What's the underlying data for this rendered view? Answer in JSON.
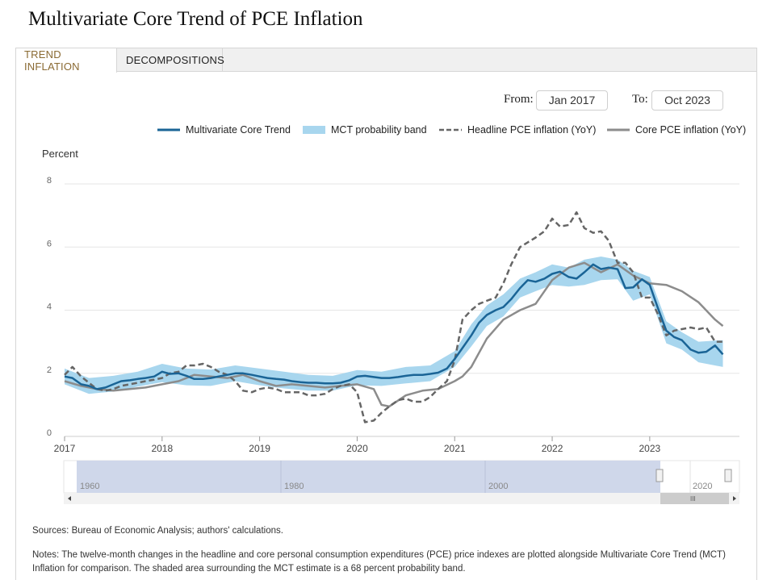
{
  "page": {
    "title": "Multivariate Core Trend of PCE Inflation"
  },
  "tabs": [
    {
      "label": "TREND INFLATION",
      "active": true
    },
    {
      "label": "DECOMPOSITIONS",
      "active": false
    }
  ],
  "range": {
    "from_label": "From:",
    "from_value": "Jan 2017",
    "to_label": "To:",
    "to_value": "Oct 2023"
  },
  "legend": {
    "mct": "Multivariate Core Trend",
    "band": "MCT probability band",
    "headline": "Headline PCE inflation (YoY)",
    "core": "Core PCE inflation (YoY)"
  },
  "colors": {
    "mct": "#1a6496",
    "band": "#a8d6ee",
    "headline": "#666666",
    "core": "#8c8c8c",
    "navigator_fill": "#cfd7ea"
  },
  "chart_data": {
    "type": "line",
    "ylabel": "Percent",
    "ylim": [
      0,
      8
    ],
    "yticks": [
      0,
      2,
      4,
      6,
      8
    ],
    "xlim": [
      2017.0,
      2023.92
    ],
    "xticks": [
      2017,
      2018,
      2019,
      2020,
      2021,
      2022,
      2023
    ],
    "grid": true,
    "series": [
      {
        "name": "Multivariate Core Trend",
        "style": "solid",
        "x": [
          2017.0,
          2017.08,
          2017.17,
          2017.25,
          2017.33,
          2017.42,
          2017.5,
          2017.58,
          2017.67,
          2017.75,
          2017.83,
          2017.92,
          2018.0,
          2018.08,
          2018.17,
          2018.25,
          2018.33,
          2018.42,
          2018.5,
          2018.58,
          2018.67,
          2018.75,
          2018.83,
          2018.92,
          2019.0,
          2019.08,
          2019.17,
          2019.25,
          2019.33,
          2019.42,
          2019.5,
          2019.58,
          2019.67,
          2019.75,
          2019.83,
          2019.92,
          2020.0,
          2020.08,
          2020.17,
          2020.25,
          2020.33,
          2020.42,
          2020.5,
          2020.58,
          2020.67,
          2020.75,
          2020.83,
          2020.92,
          2021.0,
          2021.08,
          2021.17,
          2021.25,
          2021.33,
          2021.42,
          2021.5,
          2021.58,
          2021.67,
          2021.75,
          2021.83,
          2021.92,
          2022.0,
          2022.08,
          2022.17,
          2022.25,
          2022.33,
          2022.42,
          2022.5,
          2022.58,
          2022.67,
          2022.75,
          2022.83,
          2022.92,
          2023.0,
          2023.08,
          2023.17,
          2023.25,
          2023.33,
          2023.42,
          2023.5,
          2023.58,
          2023.67,
          2023.75
        ],
        "y": [
          1.9,
          1.85,
          1.65,
          1.6,
          1.5,
          1.55,
          1.65,
          1.75,
          1.78,
          1.82,
          1.85,
          1.9,
          2.05,
          1.98,
          2.0,
          1.92,
          1.82,
          1.82,
          1.85,
          1.9,
          1.95,
          2.0,
          2.0,
          1.95,
          1.9,
          1.85,
          1.82,
          1.8,
          1.75,
          1.72,
          1.7,
          1.7,
          1.68,
          1.68,
          1.7,
          1.78,
          1.9,
          1.92,
          1.88,
          1.85,
          1.85,
          1.88,
          1.92,
          1.95,
          1.95,
          1.98,
          2.02,
          2.15,
          2.45,
          2.8,
          3.2,
          3.6,
          3.85,
          4.0,
          4.1,
          4.35,
          4.7,
          4.95,
          4.9,
          5.0,
          5.15,
          5.22,
          5.05,
          5.0,
          5.2,
          5.45,
          5.3,
          5.35,
          5.3,
          4.7,
          4.72,
          4.98,
          4.8,
          4.1,
          3.35,
          3.15,
          3.05,
          2.75,
          2.65,
          2.68,
          2.88,
          2.6
        ]
      },
      {
        "name": "MCT probability band",
        "style": "band",
        "x": [
          2017.0,
          2017.25,
          2017.5,
          2017.75,
          2018.0,
          2018.25,
          2018.5,
          2018.75,
          2019.0,
          2019.25,
          2019.5,
          2019.75,
          2020.0,
          2020.25,
          2020.5,
          2020.75,
          2021.0,
          2021.17,
          2021.33,
          2021.5,
          2021.67,
          2021.83,
          2022.0,
          2022.17,
          2022.33,
          2022.5,
          2022.67,
          2022.83,
          2023.0,
          2023.17,
          2023.33,
          2023.5,
          2023.75
        ],
        "upper": [
          2.15,
          1.85,
          1.92,
          2.05,
          2.3,
          2.15,
          2.12,
          2.25,
          2.15,
          2.05,
          1.95,
          1.92,
          2.1,
          2.05,
          2.2,
          2.25,
          2.7,
          3.55,
          4.15,
          4.5,
          5.0,
          5.2,
          5.45,
          5.35,
          5.6,
          5.7,
          5.6,
          5.25,
          5.05,
          3.65,
          3.3,
          3.0,
          3.05
        ],
        "lower": [
          1.65,
          1.35,
          1.42,
          1.58,
          1.72,
          1.62,
          1.6,
          1.75,
          1.62,
          1.52,
          1.45,
          1.45,
          1.62,
          1.6,
          1.68,
          1.75,
          2.2,
          2.85,
          3.5,
          3.8,
          4.4,
          4.6,
          4.8,
          4.75,
          4.8,
          4.95,
          4.98,
          4.3,
          4.5,
          2.95,
          2.75,
          2.35,
          2.2
        ]
      },
      {
        "name": "Headline PCE inflation (YoY)",
        "style": "dashed",
        "x": [
          2017.0,
          2017.08,
          2017.17,
          2017.25,
          2017.33,
          2017.42,
          2017.5,
          2017.58,
          2017.67,
          2017.75,
          2017.83,
          2017.92,
          2018.0,
          2018.08,
          2018.17,
          2018.25,
          2018.33,
          2018.42,
          2018.5,
          2018.58,
          2018.67,
          2018.75,
          2018.83,
          2018.92,
          2019.0,
          2019.08,
          2019.17,
          2019.25,
          2019.33,
          2019.42,
          2019.5,
          2019.58,
          2019.67,
          2019.75,
          2019.83,
          2019.92,
          2020.0,
          2020.08,
          2020.17,
          2020.25,
          2020.33,
          2020.42,
          2020.5,
          2020.58,
          2020.67,
          2020.75,
          2020.83,
          2020.92,
          2021.0,
          2021.08,
          2021.17,
          2021.25,
          2021.33,
          2021.42,
          2021.5,
          2021.58,
          2021.67,
          2021.75,
          2021.83,
          2021.92,
          2022.0,
          2022.08,
          2022.17,
          2022.25,
          2022.33,
          2022.42,
          2022.5,
          2022.58,
          2022.67,
          2022.75,
          2022.83,
          2022.92,
          2023.0,
          2023.08,
          2023.17,
          2023.25,
          2023.33,
          2023.42,
          2023.5,
          2023.58,
          2023.67,
          2023.75
        ],
        "y": [
          1.95,
          2.2,
          1.9,
          1.7,
          1.5,
          1.45,
          1.5,
          1.6,
          1.65,
          1.7,
          1.75,
          1.8,
          1.85,
          2.0,
          2.05,
          2.25,
          2.25,
          2.3,
          2.2,
          2.05,
          1.95,
          1.75,
          1.45,
          1.4,
          1.5,
          1.55,
          1.5,
          1.4,
          1.4,
          1.4,
          1.3,
          1.3,
          1.35,
          1.5,
          1.6,
          1.65,
          1.4,
          0.45,
          0.5,
          0.75,
          0.95,
          1.15,
          1.2,
          1.1,
          1.1,
          1.25,
          1.5,
          1.75,
          2.4,
          3.7,
          4.0,
          4.2,
          4.3,
          4.4,
          4.85,
          5.45,
          6.0,
          6.15,
          6.3,
          6.5,
          6.9,
          6.65,
          6.7,
          7.1,
          6.6,
          6.45,
          6.5,
          6.2,
          5.5,
          5.5,
          5.2,
          4.4,
          4.4,
          3.9,
          3.2,
          3.35,
          3.4,
          3.45,
          3.4,
          3.45,
          3.0,
          3.0
        ]
      },
      {
        "name": "Core PCE inflation (YoY)",
        "style": "solid",
        "x": [
          2017.0,
          2017.17,
          2017.33,
          2017.5,
          2017.67,
          2017.83,
          2018.0,
          2018.17,
          2018.33,
          2018.5,
          2018.67,
          2018.83,
          2019.0,
          2019.17,
          2019.33,
          2019.5,
          2019.67,
          2019.83,
          2020.0,
          2020.17,
          2020.25,
          2020.33,
          2020.5,
          2020.67,
          2020.83,
          2021.0,
          2021.08,
          2021.17,
          2021.33,
          2021.5,
          2021.67,
          2021.83,
          2022.0,
          2022.17,
          2022.33,
          2022.5,
          2022.67,
          2022.83,
          2023.0,
          2023.17,
          2023.33,
          2023.5,
          2023.67,
          2023.75
        ],
        "y": [
          1.75,
          1.6,
          1.5,
          1.45,
          1.5,
          1.55,
          1.65,
          1.75,
          1.95,
          1.9,
          1.85,
          1.95,
          1.75,
          1.6,
          1.65,
          1.6,
          1.55,
          1.6,
          1.65,
          1.5,
          1.0,
          0.95,
          1.3,
          1.45,
          1.5,
          1.75,
          1.9,
          2.2,
          3.1,
          3.7,
          4.0,
          4.2,
          4.95,
          5.35,
          5.5,
          5.2,
          5.45,
          5.1,
          4.85,
          4.8,
          4.6,
          4.25,
          3.7,
          3.5
        ]
      }
    ]
  },
  "navigator": {
    "labels": [
      "1960",
      "1980",
      "2000",
      "2020"
    ]
  },
  "footer": {
    "sources": "Sources: Bureau of Economic Analysis; authors' calculations.",
    "notes": "Notes: The twelve-month changes in the headline and core personal consumption expenditures (PCE) price indexes are plotted alongside Multivariate Core Trend (MCT) Inflation for comparison. The shaded area surrounding the MCT estimate is a 68 percent probability band."
  }
}
